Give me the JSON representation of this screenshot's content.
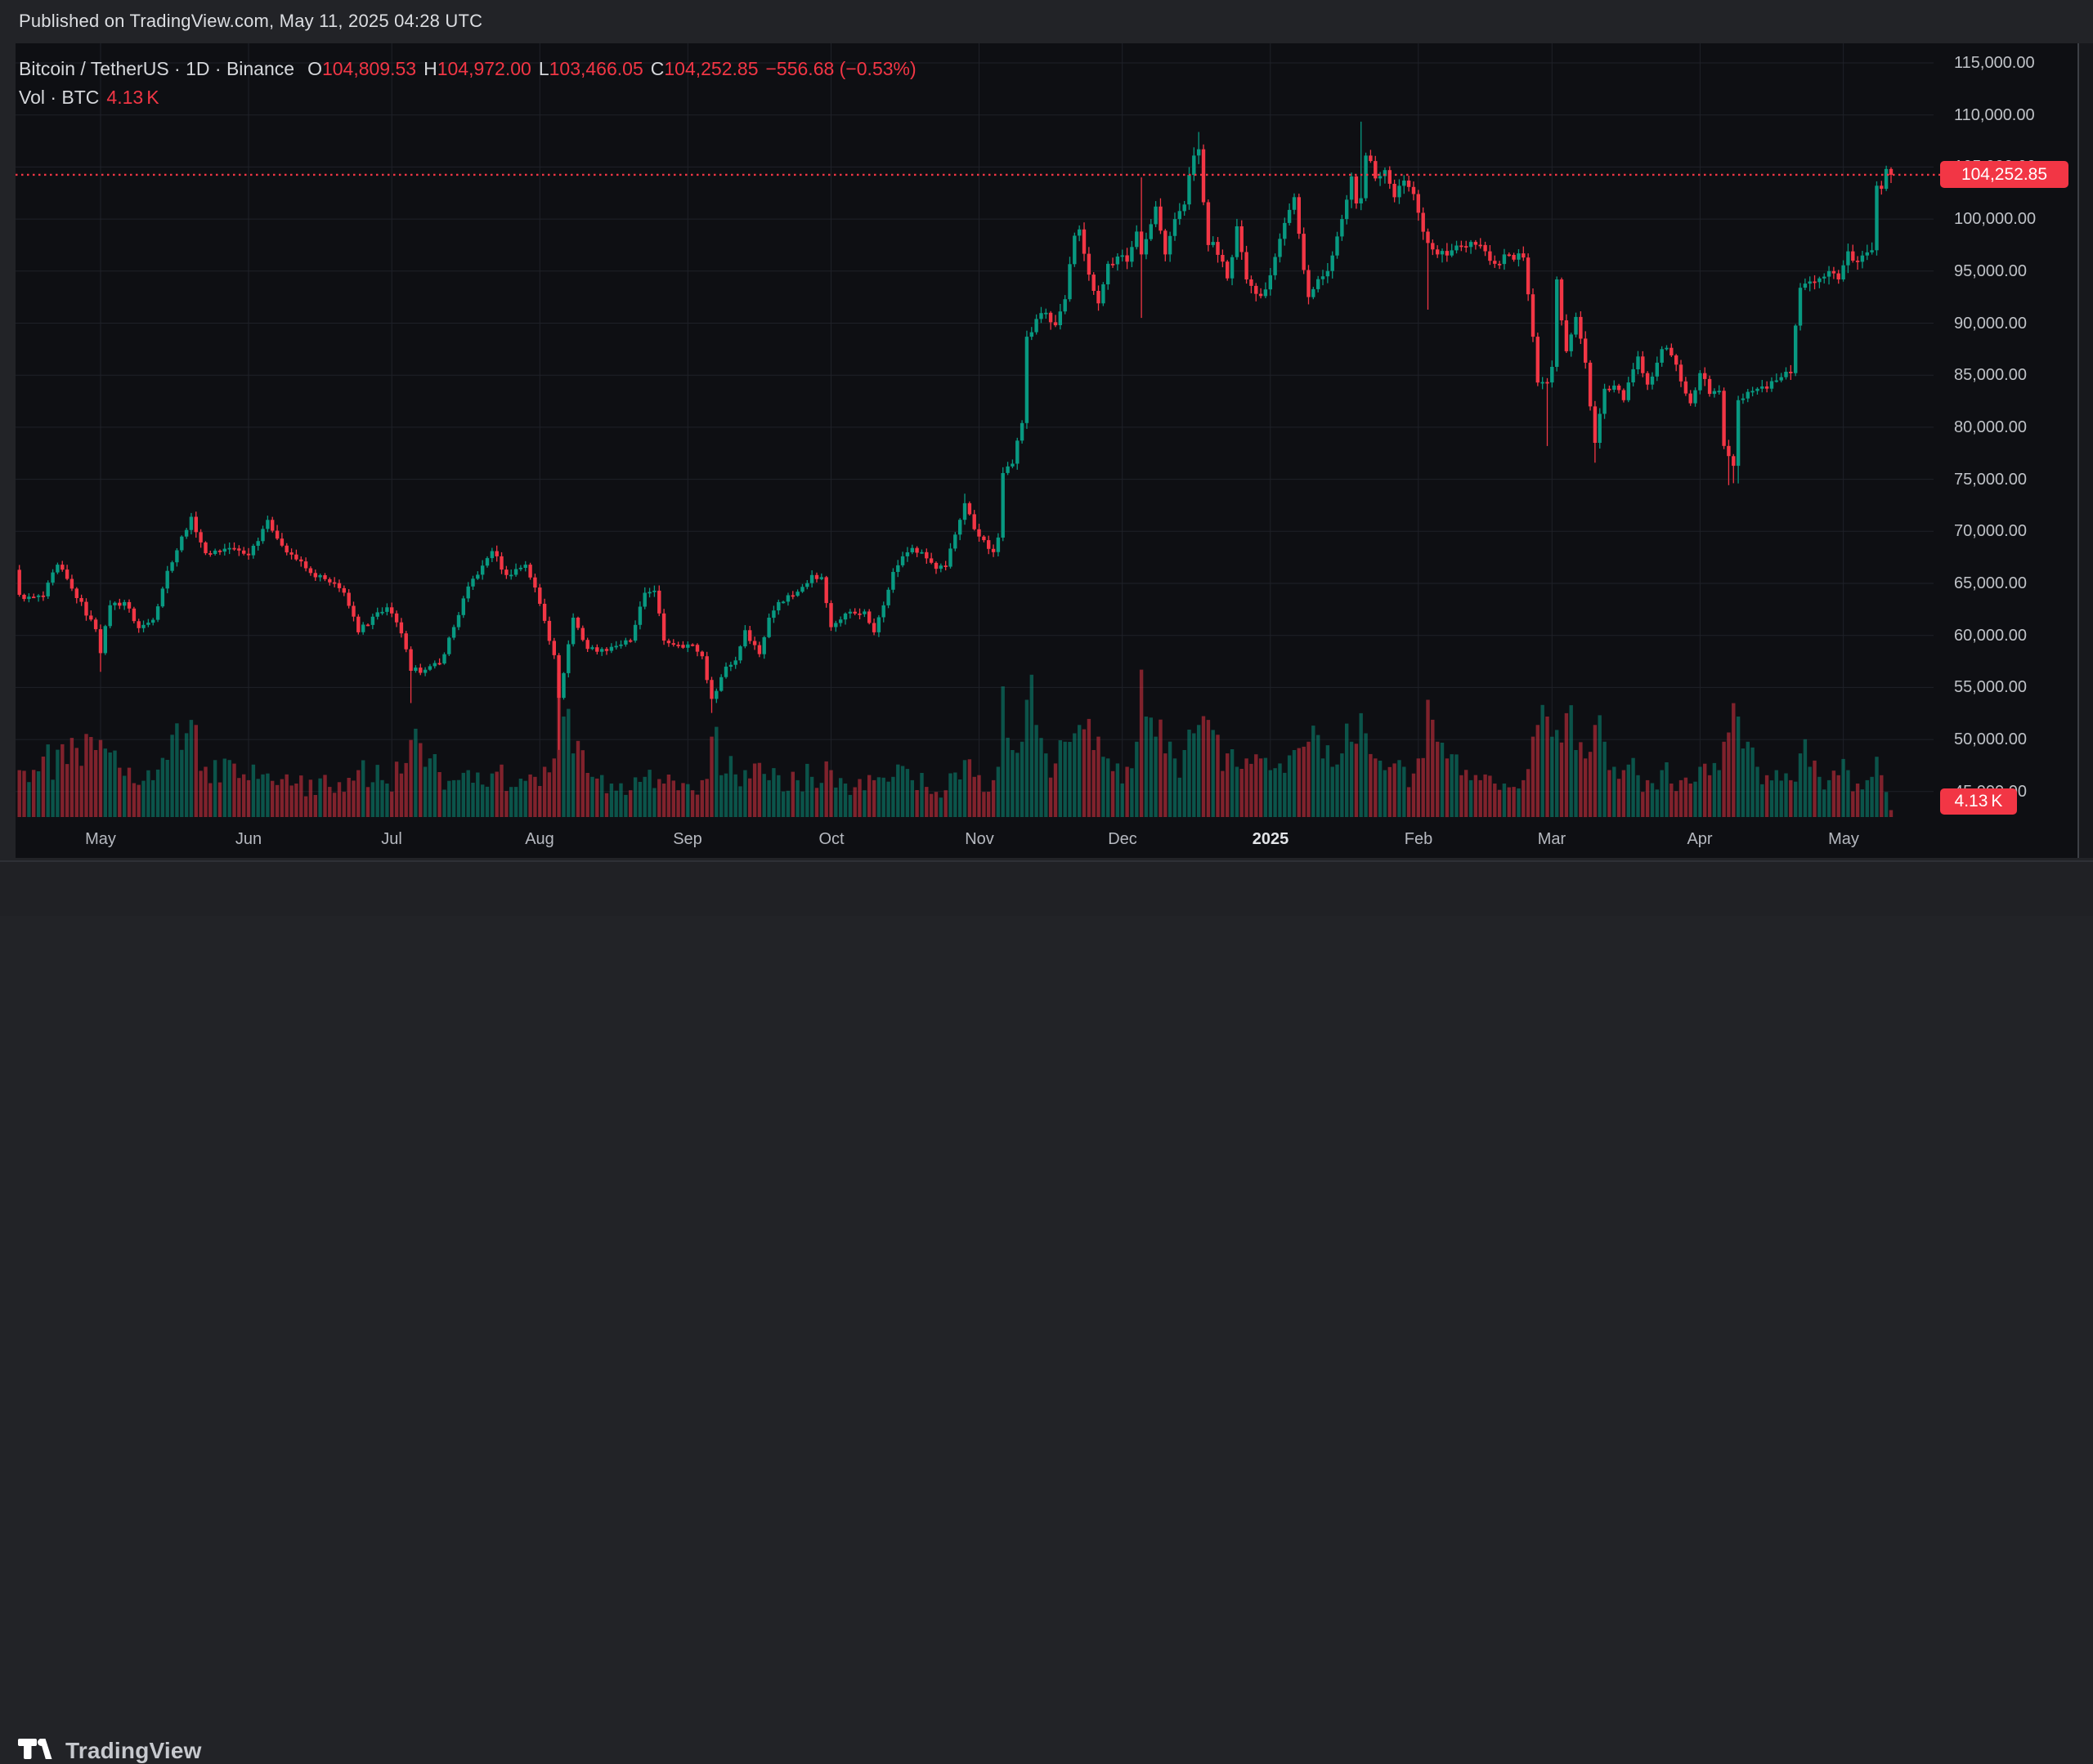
{
  "page": {
    "published_line": "Published on TradingView.com, May 11, 2025 04:28 UTC",
    "brand": "TradingView"
  },
  "legend": {
    "title": "Bitcoin / TetherUS · 1D · Binance",
    "o_label": "O",
    "open": "104,809.53",
    "h_label": "H",
    "high": "104,972.00",
    "l_label": "L",
    "low": "103,466.05",
    "c_label": "C",
    "close": "104,252.85",
    "change": "−556.68 (−0.53%)",
    "vol_label": "Vol · BTC",
    "vol_value": "4.13",
    "vol_unit": "K"
  },
  "tags": {
    "price": "104,252.85",
    "volume_value": "4.13",
    "volume_unit": "K"
  },
  "colors": {
    "up": "#089981",
    "down": "#f23645",
    "accent": "#f23645",
    "grid": "#1f2128",
    "dotted_line": "#f23645"
  },
  "chart_data": {
    "type": "candlestick+volume",
    "symbol": "Bitcoin / TetherUS",
    "exchange": "Binance",
    "interval": "1D",
    "start_date": "2024-04-13",
    "end_date": "2025-05-11",
    "price_axis_ticks": [
      115000,
      110000,
      105000,
      100000,
      95000,
      90000,
      85000,
      80000,
      75000,
      70000,
      65000,
      60000,
      55000,
      50000,
      45000
    ],
    "time_axis": [
      {
        "label": "May",
        "day": 17,
        "year": false
      },
      {
        "label": "Jun",
        "day": 48,
        "year": false
      },
      {
        "label": "Jul",
        "day": 78,
        "year": false
      },
      {
        "label": "Aug",
        "day": 109,
        "year": false
      },
      {
        "label": "Sep",
        "day": 140,
        "year": false
      },
      {
        "label": "Oct",
        "day": 170,
        "year": false
      },
      {
        "label": "Nov",
        "day": 201,
        "year": false
      },
      {
        "label": "Dec",
        "day": 231,
        "year": false
      },
      {
        "label": "2025",
        "day": 262,
        "year": true
      },
      {
        "label": "Feb",
        "day": 293,
        "year": false
      },
      {
        "label": "Mar",
        "day": 321,
        "year": false
      },
      {
        "label": "Apr",
        "day": 352,
        "year": false
      },
      {
        "label": "May",
        "day": 382,
        "year": false
      }
    ],
    "price_line_value": 104252.85,
    "last_candle": {
      "open": 104809.53,
      "high": 104972.0,
      "low": 103466.05,
      "close": 104252.85,
      "change": -556.68,
      "change_pct": -0.53
    },
    "last_volume_k_btc": 4.13,
    "first_open": 66300,
    "close_anchors": [
      [
        0,
        63900
      ],
      [
        1,
        63500
      ],
      [
        5,
        63750
      ],
      [
        8,
        66800
      ],
      [
        11,
        64500
      ],
      [
        16,
        60600
      ],
      [
        17,
        58300
      ],
      [
        19,
        62900
      ],
      [
        22,
        63200
      ],
      [
        25,
        60700
      ],
      [
        28,
        61500
      ],
      [
        31,
        66200
      ],
      [
        36,
        71400
      ],
      [
        39,
        67900
      ],
      [
        44,
        68400
      ],
      [
        48,
        67700
      ],
      [
        52,
        71100
      ],
      [
        54,
        69300
      ],
      [
        58,
        67300
      ],
      [
        61,
        66000
      ],
      [
        65,
        65100
      ],
      [
        68,
        64100
      ],
      [
        71,
        60300
      ],
      [
        74,
        61800
      ],
      [
        77,
        62700
      ],
      [
        80,
        60200
      ],
      [
        82,
        56600
      ],
      [
        85,
        56700
      ],
      [
        88,
        57300
      ],
      [
        91,
        60800
      ],
      [
        94,
        64700
      ],
      [
        97,
        66700
      ],
      [
        99,
        68100
      ],
      [
        102,
        65800
      ],
      [
        106,
        66800
      ],
      [
        108,
        64600
      ],
      [
        110,
        61400
      ],
      [
        112,
        58100
      ],
      [
        113,
        54000
      ],
      [
        116,
        61700
      ],
      [
        119,
        58700
      ],
      [
        122,
        58700
      ],
      [
        124,
        58900
      ],
      [
        128,
        59500
      ],
      [
        131,
        64100
      ],
      [
        133,
        64300
      ],
      [
        135,
        59500
      ],
      [
        138,
        59100
      ],
      [
        141,
        59100
      ],
      [
        143,
        58000
      ],
      [
        145,
        53900
      ],
      [
        148,
        57000
      ],
      [
        150,
        57600
      ],
      [
        152,
        60500
      ],
      [
        155,
        58200
      ],
      [
        157,
        61700
      ],
      [
        159,
        63200
      ],
      [
        163,
        64200
      ],
      [
        166,
        65800
      ],
      [
        168,
        65600
      ],
      [
        170,
        60800
      ],
      [
        173,
        62100
      ],
      [
        177,
        62300
      ],
      [
        179,
        60300
      ],
      [
        183,
        66100
      ],
      [
        185,
        67600
      ],
      [
        187,
        68400
      ],
      [
        190,
        67400
      ],
      [
        192,
        66400
      ],
      [
        194,
        66600
      ],
      [
        198,
        72700
      ],
      [
        200,
        70200
      ],
      [
        201,
        69500
      ],
      [
        204,
        68000
      ],
      [
        205,
        69400
      ],
      [
        206,
        75600
      ],
      [
        208,
        76500
      ],
      [
        210,
        80400
      ],
      [
        211,
        88700
      ],
      [
        213,
        90400
      ],
      [
        215,
        91000
      ],
      [
        217,
        89800
      ],
      [
        219,
        92300
      ],
      [
        221,
        98400
      ],
      [
        222,
        99000
      ],
      [
        225,
        93100
      ],
      [
        226,
        91900
      ],
      [
        228,
        95700
      ],
      [
        230,
        96400
      ],
      [
        232,
        95900
      ],
      [
        234,
        98800
      ],
      [
        235,
        96600
      ],
      [
        238,
        101200
      ],
      [
        240,
        96600
      ],
      [
        242,
        100000
      ],
      [
        244,
        101400
      ],
      [
        246,
        106100
      ],
      [
        247,
        106700
      ],
      [
        249,
        97500
      ],
      [
        250,
        97800
      ],
      [
        253,
        94300
      ],
      [
        255,
        99300
      ],
      [
        257,
        94200
      ],
      [
        260,
        92600
      ],
      [
        262,
        94600
      ],
      [
        264,
        98100
      ],
      [
        267,
        102100
      ],
      [
        269,
        95100
      ],
      [
        270,
        92500
      ],
      [
        273,
        94500
      ],
      [
        275,
        96500
      ],
      [
        277,
        100000
      ],
      [
        279,
        104100
      ],
      [
        280,
        101500
      ],
      [
        281,
        102000
      ],
      [
        282,
        106100
      ],
      [
        284,
        103900
      ],
      [
        286,
        104700
      ],
      [
        288,
        102100
      ],
      [
        290,
        103700
      ],
      [
        292,
        102400
      ],
      [
        293,
        100600
      ],
      [
        295,
        97700
      ],
      [
        297,
        96600
      ],
      [
        299,
        96500
      ],
      [
        302,
        97400
      ],
      [
        304,
        97800
      ],
      [
        306,
        97500
      ],
      [
        309,
        95700
      ],
      [
        311,
        96600
      ],
      [
        313,
        96100
      ],
      [
        315,
        96300
      ],
      [
        317,
        88700
      ],
      [
        318,
        84300
      ],
      [
        320,
        84300
      ],
      [
        321,
        85800
      ],
      [
        322,
        94200
      ],
      [
        324,
        87300
      ],
      [
        326,
        90600
      ],
      [
        328,
        86200
      ],
      [
        330,
        78500
      ],
      [
        332,
        83700
      ],
      [
        334,
        84000
      ],
      [
        336,
        82600
      ],
      [
        339,
        86800
      ],
      [
        341,
        84100
      ],
      [
        344,
        87500
      ],
      [
        346,
        86900
      ],
      [
        348,
        84400
      ],
      [
        350,
        82300
      ],
      [
        352,
        85200
      ],
      [
        354,
        83200
      ],
      [
        356,
        83500
      ],
      [
        357,
        78200
      ],
      [
        359,
        76300
      ],
      [
        360,
        82600
      ],
      [
        362,
        83400
      ],
      [
        364,
        83700
      ],
      [
        366,
        83700
      ],
      [
        368,
        84500
      ],
      [
        371,
        85200
      ],
      [
        373,
        93400
      ],
      [
        375,
        94000
      ],
      [
        377,
        94300
      ],
      [
        379,
        95000
      ],
      [
        381,
        94200
      ],
      [
        383,
        96900
      ],
      [
        385,
        95900
      ],
      [
        387,
        96800
      ],
      [
        388,
        97000
      ],
      [
        389,
        103200
      ],
      [
        390,
        102900
      ],
      [
        391,
        104809.53
      ],
      [
        392,
        104252.85
      ]
    ],
    "wick_extremes": [
      [
        17,
        null,
        56500
      ],
      [
        82,
        null,
        53500
      ],
      [
        113,
        null,
        49000
      ],
      [
        145,
        null,
        52550
      ],
      [
        198,
        73620,
        null
      ],
      [
        235,
        104000,
        90500
      ],
      [
        247,
        108365,
        null
      ],
      [
        281,
        109358,
        null
      ],
      [
        295,
        null,
        91300
      ],
      [
        320,
        null,
        78200
      ],
      [
        330,
        null,
        76600
      ],
      [
        358,
        null,
        74436
      ],
      [
        359,
        null,
        74620
      ],
      [
        360,
        null,
        74600
      ]
    ],
    "volume_anchors": [
      [
        0,
        28
      ],
      [
        16,
        40
      ],
      [
        17,
        46
      ],
      [
        28,
        22
      ],
      [
        36,
        58
      ],
      [
        39,
        30
      ],
      [
        48,
        22
      ],
      [
        52,
        26
      ],
      [
        58,
        20
      ],
      [
        65,
        18
      ],
      [
        71,
        28
      ],
      [
        77,
        20
      ],
      [
        80,
        26
      ],
      [
        82,
        46
      ],
      [
        85,
        30
      ],
      [
        91,
        22
      ],
      [
        94,
        28
      ],
      [
        99,
        26
      ],
      [
        104,
        18
      ],
      [
        108,
        24
      ],
      [
        110,
        30
      ],
      [
        112,
        35
      ],
      [
        113,
        86
      ],
      [
        114,
        60
      ],
      [
        116,
        38
      ],
      [
        120,
        24
      ],
      [
        124,
        20
      ],
      [
        128,
        16
      ],
      [
        131,
        24
      ],
      [
        135,
        20
      ],
      [
        138,
        16
      ],
      [
        141,
        16
      ],
      [
        143,
        22
      ],
      [
        145,
        48
      ],
      [
        148,
        26
      ],
      [
        152,
        28
      ],
      [
        157,
        22
      ],
      [
        163,
        22
      ],
      [
        166,
        24
      ],
      [
        170,
        28
      ],
      [
        173,
        20
      ],
      [
        177,
        16
      ],
      [
        179,
        22
      ],
      [
        183,
        24
      ],
      [
        187,
        22
      ],
      [
        190,
        18
      ],
      [
        194,
        16
      ],
      [
        198,
        34
      ],
      [
        200,
        24
      ],
      [
        204,
        22
      ],
      [
        205,
        30
      ],
      [
        206,
        78
      ],
      [
        208,
        40
      ],
      [
        210,
        45
      ],
      [
        211,
        70
      ],
      [
        212,
        85
      ],
      [
        213,
        55
      ],
      [
        215,
        38
      ],
      [
        217,
        32
      ],
      [
        219,
        45
      ],
      [
        221,
        50
      ],
      [
        222,
        55
      ],
      [
        225,
        40
      ],
      [
        226,
        48
      ],
      [
        228,
        35
      ],
      [
        230,
        32
      ],
      [
        232,
        30
      ],
      [
        234,
        45
      ],
      [
        235,
        88
      ],
      [
        236,
        60
      ],
      [
        238,
        48
      ],
      [
        240,
        38
      ],
      [
        242,
        35
      ],
      [
        244,
        40
      ],
      [
        246,
        50
      ],
      [
        247,
        55
      ],
      [
        249,
        58
      ],
      [
        250,
        52
      ],
      [
        253,
        38
      ],
      [
        255,
        30
      ],
      [
        257,
        35
      ],
      [
        260,
        35
      ],
      [
        262,
        28
      ],
      [
        264,
        32
      ],
      [
        267,
        40
      ],
      [
        269,
        42
      ],
      [
        270,
        45
      ],
      [
        273,
        35
      ],
      [
        275,
        30
      ],
      [
        277,
        38
      ],
      [
        279,
        45
      ],
      [
        281,
        62
      ],
      [
        282,
        50
      ],
      [
        284,
        35
      ],
      [
        286,
        28
      ],
      [
        288,
        32
      ],
      [
        290,
        30
      ],
      [
        292,
        26
      ],
      [
        293,
        35
      ],
      [
        295,
        70
      ],
      [
        297,
        45
      ],
      [
        299,
        35
      ],
      [
        302,
        25
      ],
      [
        304,
        22
      ],
      [
        306,
        22
      ],
      [
        309,
        20
      ],
      [
        311,
        20
      ],
      [
        313,
        18
      ],
      [
        315,
        22
      ],
      [
        317,
        48
      ],
      [
        318,
        55
      ],
      [
        320,
        60
      ],
      [
        322,
        52
      ],
      [
        324,
        62
      ],
      [
        326,
        40
      ],
      [
        328,
        35
      ],
      [
        330,
        55
      ],
      [
        332,
        45
      ],
      [
        334,
        30
      ],
      [
        336,
        28
      ],
      [
        339,
        25
      ],
      [
        341,
        22
      ],
      [
        344,
        28
      ],
      [
        346,
        20
      ],
      [
        348,
        22
      ],
      [
        350,
        20
      ],
      [
        352,
        30
      ],
      [
        354,
        25
      ],
      [
        356,
        28
      ],
      [
        357,
        45
      ],
      [
        359,
        68
      ],
      [
        360,
        60
      ],
      [
        362,
        45
      ],
      [
        364,
        30
      ],
      [
        366,
        25
      ],
      [
        368,
        28
      ],
      [
        371,
        22
      ],
      [
        373,
        38
      ],
      [
        375,
        30
      ],
      [
        377,
        24
      ],
      [
        379,
        22
      ],
      [
        381,
        25
      ],
      [
        383,
        28
      ],
      [
        385,
        20
      ],
      [
        387,
        22
      ],
      [
        388,
        24
      ],
      [
        389,
        36
      ],
      [
        390,
        25
      ],
      [
        391,
        15
      ],
      [
        392,
        4.13
      ]
    ]
  }
}
